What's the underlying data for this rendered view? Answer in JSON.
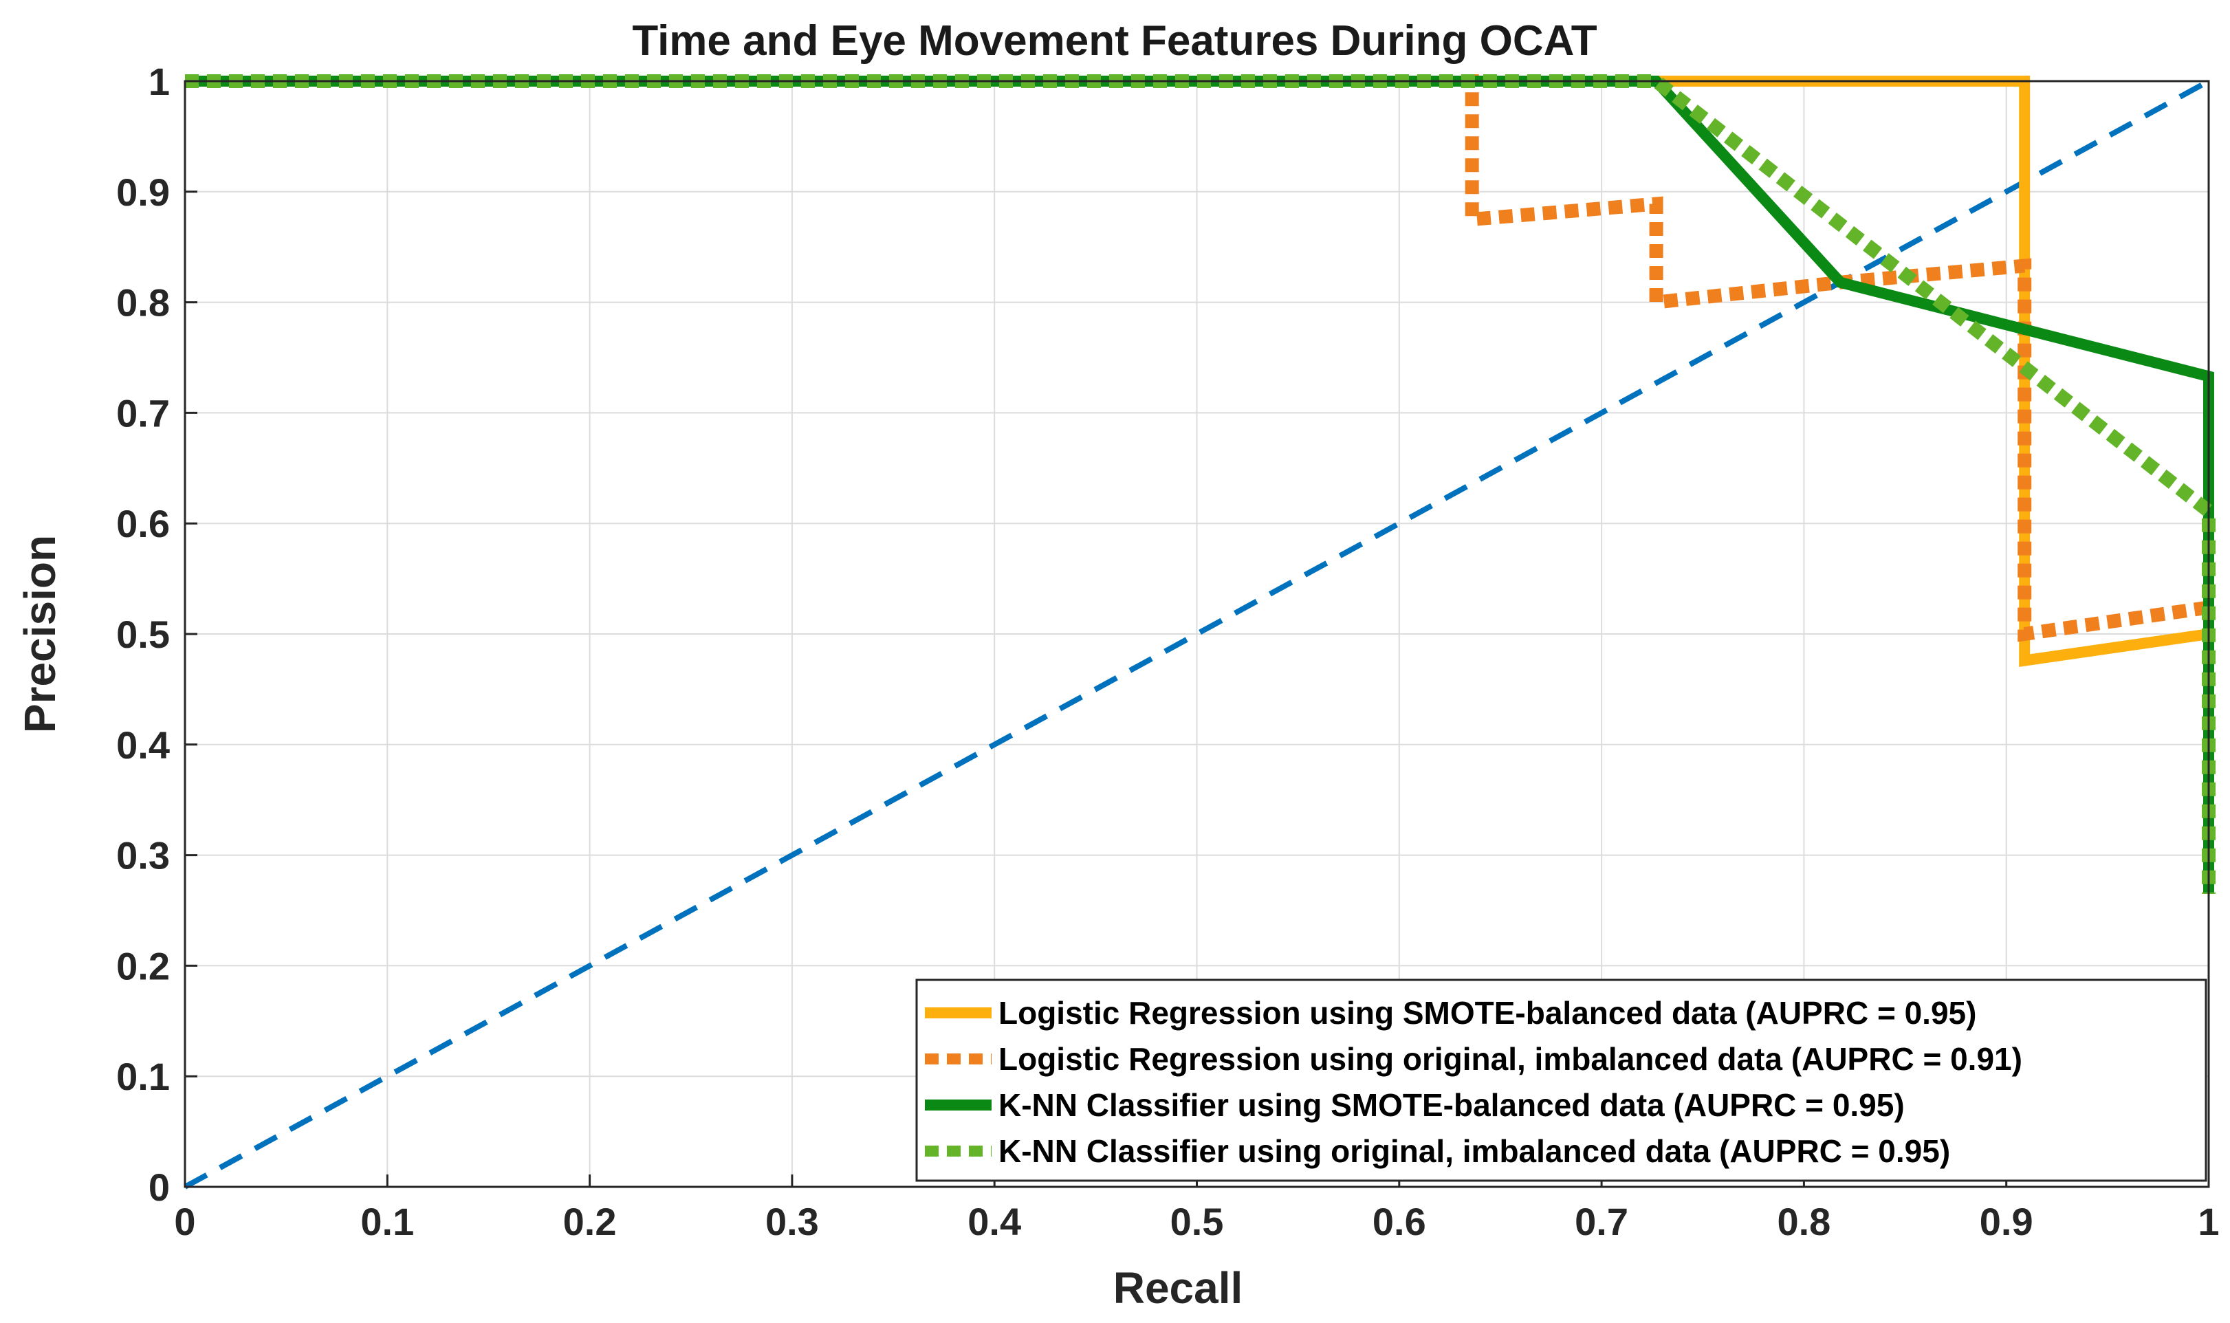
{
  "chart_data": {
    "type": "line",
    "title": "Time and Eye Movement Features During OCAT",
    "xlabel": "Recall",
    "ylabel": "Precision",
    "xlim": [
      0,
      1
    ],
    "ylim": [
      0,
      1
    ],
    "grid": true,
    "legend_position": "bottom-right",
    "xticks": [
      "0",
      "0.1",
      "0.2",
      "0.3",
      "0.4",
      "0.5",
      "0.6",
      "0.7",
      "0.8",
      "0.9",
      "1"
    ],
    "yticks": [
      "0",
      "0.1",
      "0.2",
      "0.3",
      "0.4",
      "0.5",
      "0.6",
      "0.7",
      "0.8",
      "0.9",
      "1"
    ],
    "series": [
      {
        "name": "Logistic Regression using SMOTE-balanced data (AUPRC = 0.95)",
        "color": "#FDB00D",
        "style": "solid",
        "points": [
          [
            0,
            1
          ],
          [
            0.909,
            1
          ],
          [
            0.909,
            0.476
          ],
          [
            1,
            0.5
          ]
        ]
      },
      {
        "name": "Logistic Regression using original, imbalanced data (AUPRC = 0.91)",
        "color": "#F07F1E",
        "style": "dotted",
        "points": [
          [
            0,
            1
          ],
          [
            0.636,
            1
          ],
          [
            0.636,
            0.875
          ],
          [
            0.727,
            0.889
          ],
          [
            0.727,
            0.8
          ],
          [
            0.818,
            0.818
          ],
          [
            0.909,
            0.833
          ],
          [
            0.909,
            0.5
          ],
          [
            1,
            0.524
          ]
        ]
      },
      {
        "name": "K-NN Classifier using SMOTE-balanced data (AUPRC = 0.95)",
        "color": "#0A8A14",
        "style": "solid",
        "points": [
          [
            0,
            1
          ],
          [
            0.727,
            1
          ],
          [
            0.818,
            0.818
          ],
          [
            1,
            0.733
          ],
          [
            1,
            0.265
          ]
        ]
      },
      {
        "name": "K-NN Classifier using original, imbalanced data (AUPRC = 0.95)",
        "color": "#64B42A",
        "style": "dotted",
        "points": [
          [
            0,
            1
          ],
          [
            0.727,
            1
          ],
          [
            0.909,
            0.741
          ],
          [
            1,
            0.611
          ],
          [
            1,
            0.265
          ]
        ]
      },
      {
        "color": "#0072BD",
        "style": "dashed",
        "points": [
          [
            0,
            0
          ],
          [
            1,
            1
          ]
        ]
      }
    ]
  }
}
